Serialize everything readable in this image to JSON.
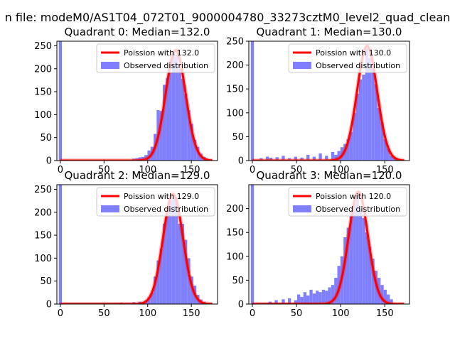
{
  "figure": {
    "suptitle": "n file: modeM0/AS1T04_072T01_9000004780_33273cztM0_level2_quad_clean"
  },
  "colors": {
    "bar": "#8080ff",
    "line": "#ff0000",
    "axis": "#000000",
    "background": "#ffffff"
  },
  "chart_data": [
    {
      "type": "bar",
      "title": "Quadrant 0: Median=132.0",
      "xlim": [
        -4,
        180
      ],
      "ylim": [
        0,
        260
      ],
      "xticks": [
        0,
        50,
        100,
        150
      ],
      "yticks": [
        0,
        50,
        100,
        150,
        200,
        250
      ],
      "legend": {
        "position": "top-right",
        "line_label": "Poission with 132.0",
        "bar_label": "Observed distribution"
      },
      "bin_width": 3.5,
      "bins": [
        {
          "x": 0,
          "y": 260
        },
        {
          "x": 3.5,
          "y": 2
        },
        {
          "x": 84,
          "y": 4
        },
        {
          "x": 87.5,
          "y": 5
        },
        {
          "x": 91,
          "y": 7
        },
        {
          "x": 94.5,
          "y": 8
        },
        {
          "x": 98,
          "y": 12
        },
        {
          "x": 101.5,
          "y": 22
        },
        {
          "x": 105,
          "y": 30
        },
        {
          "x": 108.5,
          "y": 58
        },
        {
          "x": 112,
          "y": 110
        },
        {
          "x": 115.5,
          "y": 108
        },
        {
          "x": 119,
          "y": 165
        },
        {
          "x": 122.5,
          "y": 180
        },
        {
          "x": 126,
          "y": 192
        },
        {
          "x": 129.5,
          "y": 240
        },
        {
          "x": 133,
          "y": 230
        },
        {
          "x": 136.5,
          "y": 200
        },
        {
          "x": 140,
          "y": 178
        },
        {
          "x": 143.5,
          "y": 145
        },
        {
          "x": 147,
          "y": 110
        },
        {
          "x": 150.5,
          "y": 80
        },
        {
          "x": 154,
          "y": 45
        },
        {
          "x": 157.5,
          "y": 30
        },
        {
          "x": 161,
          "y": 15
        },
        {
          "x": 164.5,
          "y": 8
        },
        {
          "x": 168,
          "y": 3
        }
      ],
      "poisson": {
        "mean": 132.0,
        "scale": 240
      }
    },
    {
      "type": "bar",
      "title": "Quadrant 1: Median=130.0",
      "xlim": [
        -4,
        178
      ],
      "ylim": [
        0,
        250
      ],
      "xticks": [
        0,
        50,
        100,
        150
      ],
      "yticks": [
        0,
        50,
        100,
        150,
        200,
        250
      ],
      "legend": {
        "position": "top-right",
        "line_label": "Poission with 130.0",
        "bar_label": "Observed distribution"
      },
      "bin_width": 3.5,
      "bins": [
        {
          "x": 0,
          "y": 250
        },
        {
          "x": 10,
          "y": 5
        },
        {
          "x": 17,
          "y": 8
        },
        {
          "x": 21,
          "y": 6
        },
        {
          "x": 28,
          "y": 7
        },
        {
          "x": 35,
          "y": 10
        },
        {
          "x": 42,
          "y": 5
        },
        {
          "x": 49,
          "y": 8
        },
        {
          "x": 56,
          "y": 6
        },
        {
          "x": 63,
          "y": 12
        },
        {
          "x": 70,
          "y": 8
        },
        {
          "x": 77,
          "y": 15
        },
        {
          "x": 84,
          "y": 10
        },
        {
          "x": 91,
          "y": 18
        },
        {
          "x": 94.5,
          "y": 12
        },
        {
          "x": 98,
          "y": 20
        },
        {
          "x": 101.5,
          "y": 28
        },
        {
          "x": 105,
          "y": 35
        },
        {
          "x": 108.5,
          "y": 45
        },
        {
          "x": 112,
          "y": 60
        },
        {
          "x": 115.5,
          "y": 100
        },
        {
          "x": 119,
          "y": 140
        },
        {
          "x": 122.5,
          "y": 170
        },
        {
          "x": 126,
          "y": 180
        },
        {
          "x": 129.5,
          "y": 235
        },
        {
          "x": 133,
          "y": 215
        },
        {
          "x": 136.5,
          "y": 200
        },
        {
          "x": 140,
          "y": 160
        },
        {
          "x": 143.5,
          "y": 110
        },
        {
          "x": 147,
          "y": 80
        },
        {
          "x": 150.5,
          "y": 45
        },
        {
          "x": 154,
          "y": 25
        },
        {
          "x": 157.5,
          "y": 10
        },
        {
          "x": 161,
          "y": 5
        }
      ],
      "poisson": {
        "mean": 130.0,
        "scale": 240
      }
    },
    {
      "type": "bar",
      "title": "Quadrant 2: Median=129.0",
      "xlim": [
        -4,
        180
      ],
      "ylim": [
        0,
        260
      ],
      "xticks": [
        0,
        50,
        100,
        150
      ],
      "yticks": [
        0,
        50,
        100,
        150,
        200,
        250
      ],
      "legend": {
        "position": "top-right",
        "line_label": "Poission with 129.0",
        "bar_label": "Observed distribution"
      },
      "bin_width": 3.5,
      "bins": [
        {
          "x": 0,
          "y": 260
        },
        {
          "x": 70,
          "y": 3
        },
        {
          "x": 84,
          "y": 4
        },
        {
          "x": 91,
          "y": 5
        },
        {
          "x": 98,
          "y": 8
        },
        {
          "x": 101.5,
          "y": 15
        },
        {
          "x": 105,
          "y": 25
        },
        {
          "x": 108.5,
          "y": 60
        },
        {
          "x": 112,
          "y": 95
        },
        {
          "x": 115.5,
          "y": 120
        },
        {
          "x": 119,
          "y": 175
        },
        {
          "x": 122.5,
          "y": 200
        },
        {
          "x": 126,
          "y": 225
        },
        {
          "x": 129.5,
          "y": 232
        },
        {
          "x": 133,
          "y": 230
        },
        {
          "x": 136.5,
          "y": 175
        },
        {
          "x": 140,
          "y": 175
        },
        {
          "x": 143.5,
          "y": 140
        },
        {
          "x": 147,
          "y": 100
        },
        {
          "x": 150.5,
          "y": 60
        },
        {
          "x": 154,
          "y": 40
        },
        {
          "x": 157.5,
          "y": 20
        },
        {
          "x": 161,
          "y": 10
        },
        {
          "x": 164.5,
          "y": 5
        }
      ],
      "poisson": {
        "mean": 129.0,
        "scale": 240
      }
    },
    {
      "type": "bar",
      "title": "Quadrant 3: Median=120.0",
      "xlim": [
        -4,
        178
      ],
      "ylim": [
        0,
        250
      ],
      "xticks": [
        0,
        50,
        100,
        150
      ],
      "yticks": [
        0,
        50,
        100,
        150,
        200
      ],
      "legend": {
        "position": "top-right",
        "line_label": "Poission with 120.0",
        "bar_label": "Observed distribution"
      },
      "bin_width": 3.5,
      "bins": [
        {
          "x": 0,
          "y": 250
        },
        {
          "x": 20,
          "y": 5
        },
        {
          "x": 27,
          "y": 8
        },
        {
          "x": 35,
          "y": 10
        },
        {
          "x": 42,
          "y": 12
        },
        {
          "x": 49,
          "y": 8
        },
        {
          "x": 52.5,
          "y": 20
        },
        {
          "x": 56,
          "y": 15
        },
        {
          "x": 59.5,
          "y": 25
        },
        {
          "x": 63,
          "y": 18
        },
        {
          "x": 66.5,
          "y": 30
        },
        {
          "x": 70,
          "y": 22
        },
        {
          "x": 73.5,
          "y": 28
        },
        {
          "x": 77,
          "y": 25
        },
        {
          "x": 80.5,
          "y": 30
        },
        {
          "x": 84,
          "y": 28
        },
        {
          "x": 87.5,
          "y": 35
        },
        {
          "x": 91,
          "y": 40
        },
        {
          "x": 94.5,
          "y": 55
        },
        {
          "x": 98,
          "y": 80
        },
        {
          "x": 101.5,
          "y": 100
        },
        {
          "x": 105,
          "y": 140
        },
        {
          "x": 108.5,
          "y": 160
        },
        {
          "x": 112,
          "y": 185
        },
        {
          "x": 115.5,
          "y": 210
        },
        {
          "x": 119,
          "y": 230
        },
        {
          "x": 122.5,
          "y": 200
        },
        {
          "x": 126,
          "y": 180
        },
        {
          "x": 129.5,
          "y": 150
        },
        {
          "x": 133,
          "y": 120
        },
        {
          "x": 136.5,
          "y": 95
        },
        {
          "x": 140,
          "y": 70
        },
        {
          "x": 143.5,
          "y": 55
        },
        {
          "x": 147,
          "y": 40
        },
        {
          "x": 150.5,
          "y": 30
        },
        {
          "x": 154,
          "y": 20
        },
        {
          "x": 157.5,
          "y": 10
        }
      ],
      "poisson": {
        "mean": 120.0,
        "scale": 235
      }
    }
  ]
}
